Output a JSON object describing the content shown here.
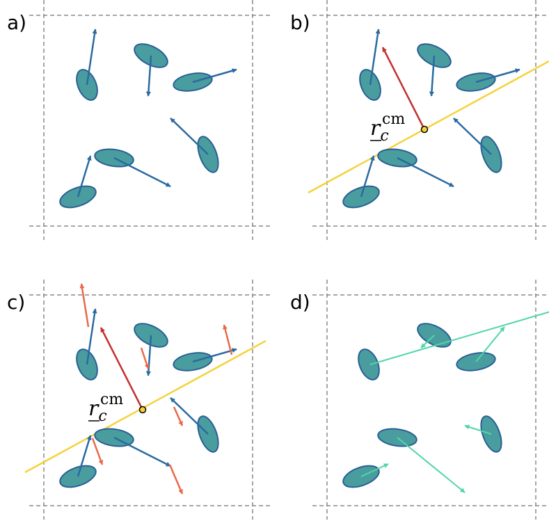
{
  "panels": [
    {
      "label": "a)"
    },
    {
      "label": "b)"
    },
    {
      "label": "c)"
    },
    {
      "label": "d)"
    }
  ],
  "annotations": [
    {
      "symbol": "r",
      "subscript": "c",
      "superscript": "cm"
    },
    {
      "symbol": "r",
      "subscript": "c",
      "superscript": "cm"
    }
  ]
}
